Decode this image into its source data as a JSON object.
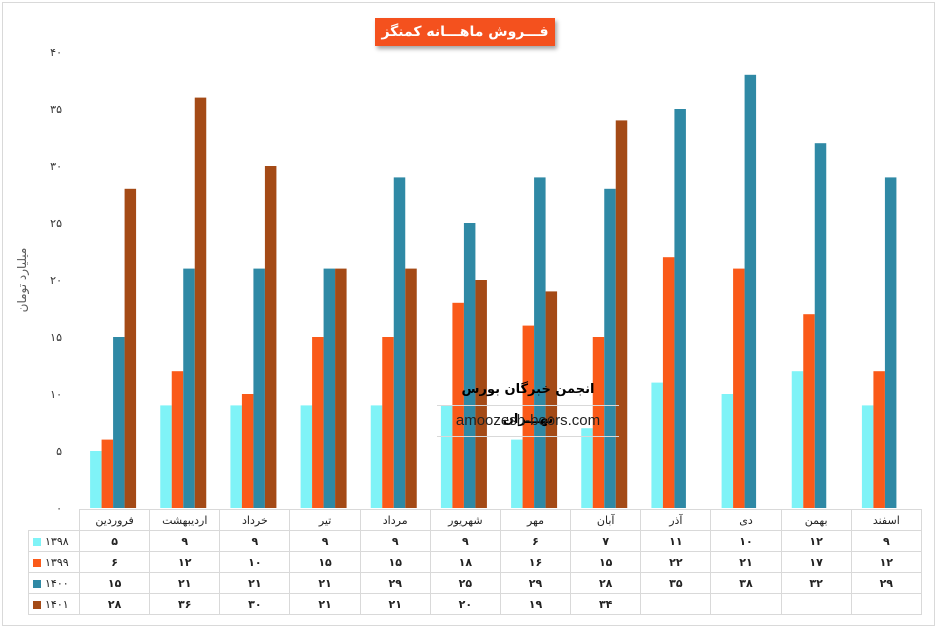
{
  "chart_data": {
    "type": "bar",
    "title": "فـــروش ماهـــانه کمنگز",
    "ylabel": "میلیارد تومان",
    "ylim": [
      0,
      40
    ],
    "yticks": [
      "۰",
      "۵",
      "۱۰",
      "۱۵",
      "۲۰",
      "۲۵",
      "۳۰",
      "۳۵",
      "۴۰"
    ],
    "categories": [
      "فروردین",
      "اردیبهشت",
      "خرداد",
      "تیر",
      "مرداد",
      "شهریور",
      "مهر",
      "آبان",
      "آذر",
      "دی",
      "بهمن",
      "اسفند"
    ],
    "series": [
      {
        "name": "۱۳۹۸",
        "color": "#7ff3f7",
        "values": [
          5,
          9,
          9,
          9,
          9,
          9,
          6,
          7,
          11,
          10,
          12,
          9
        ],
        "labels": [
          "۵",
          "۹",
          "۹",
          "۹",
          "۹",
          "۹",
          "۶",
          "۷",
          "۱۱",
          "۱۰",
          "۱۲",
          "۹"
        ]
      },
      {
        "name": "۱۳۹۹",
        "color": "#fa5a19",
        "values": [
          6,
          12,
          10,
          15,
          15,
          18,
          16,
          15,
          22,
          21,
          17,
          12
        ],
        "labels": [
          "۶",
          "۱۲",
          "۱۰",
          "۱۵",
          "۱۵",
          "۱۸",
          "۱۶",
          "۱۵",
          "۲۲",
          "۲۱",
          "۱۷",
          "۱۲"
        ]
      },
      {
        "name": "۱۴۰۰",
        "color": "#2f89a5",
        "values": [
          15,
          21,
          21,
          21,
          29,
          25,
          29,
          28,
          35,
          38,
          32,
          29
        ],
        "labels": [
          "۱۵",
          "۲۱",
          "۲۱",
          "۲۱",
          "۲۹",
          "۲۵",
          "۲۹",
          "۲۸",
          "۳۵",
          "۳۸",
          "۳۲",
          "۲۹"
        ]
      },
      {
        "name": "۱۴۰۱",
        "color": "#a44a16",
        "values": [
          28,
          36,
          30,
          21,
          21,
          20,
          19,
          34,
          null,
          null,
          null,
          null
        ],
        "labels": [
          "۲۸",
          "۳۶",
          "۳۰",
          "۲۱",
          "۲۱",
          "۲۰",
          "۱۹",
          "۳۴",
          "",
          "",
          "",
          ""
        ]
      }
    ]
  },
  "watermark": {
    "title": "انجمن خبرگان بورس تهـــران",
    "url": "amoozesh-boors.com"
  }
}
